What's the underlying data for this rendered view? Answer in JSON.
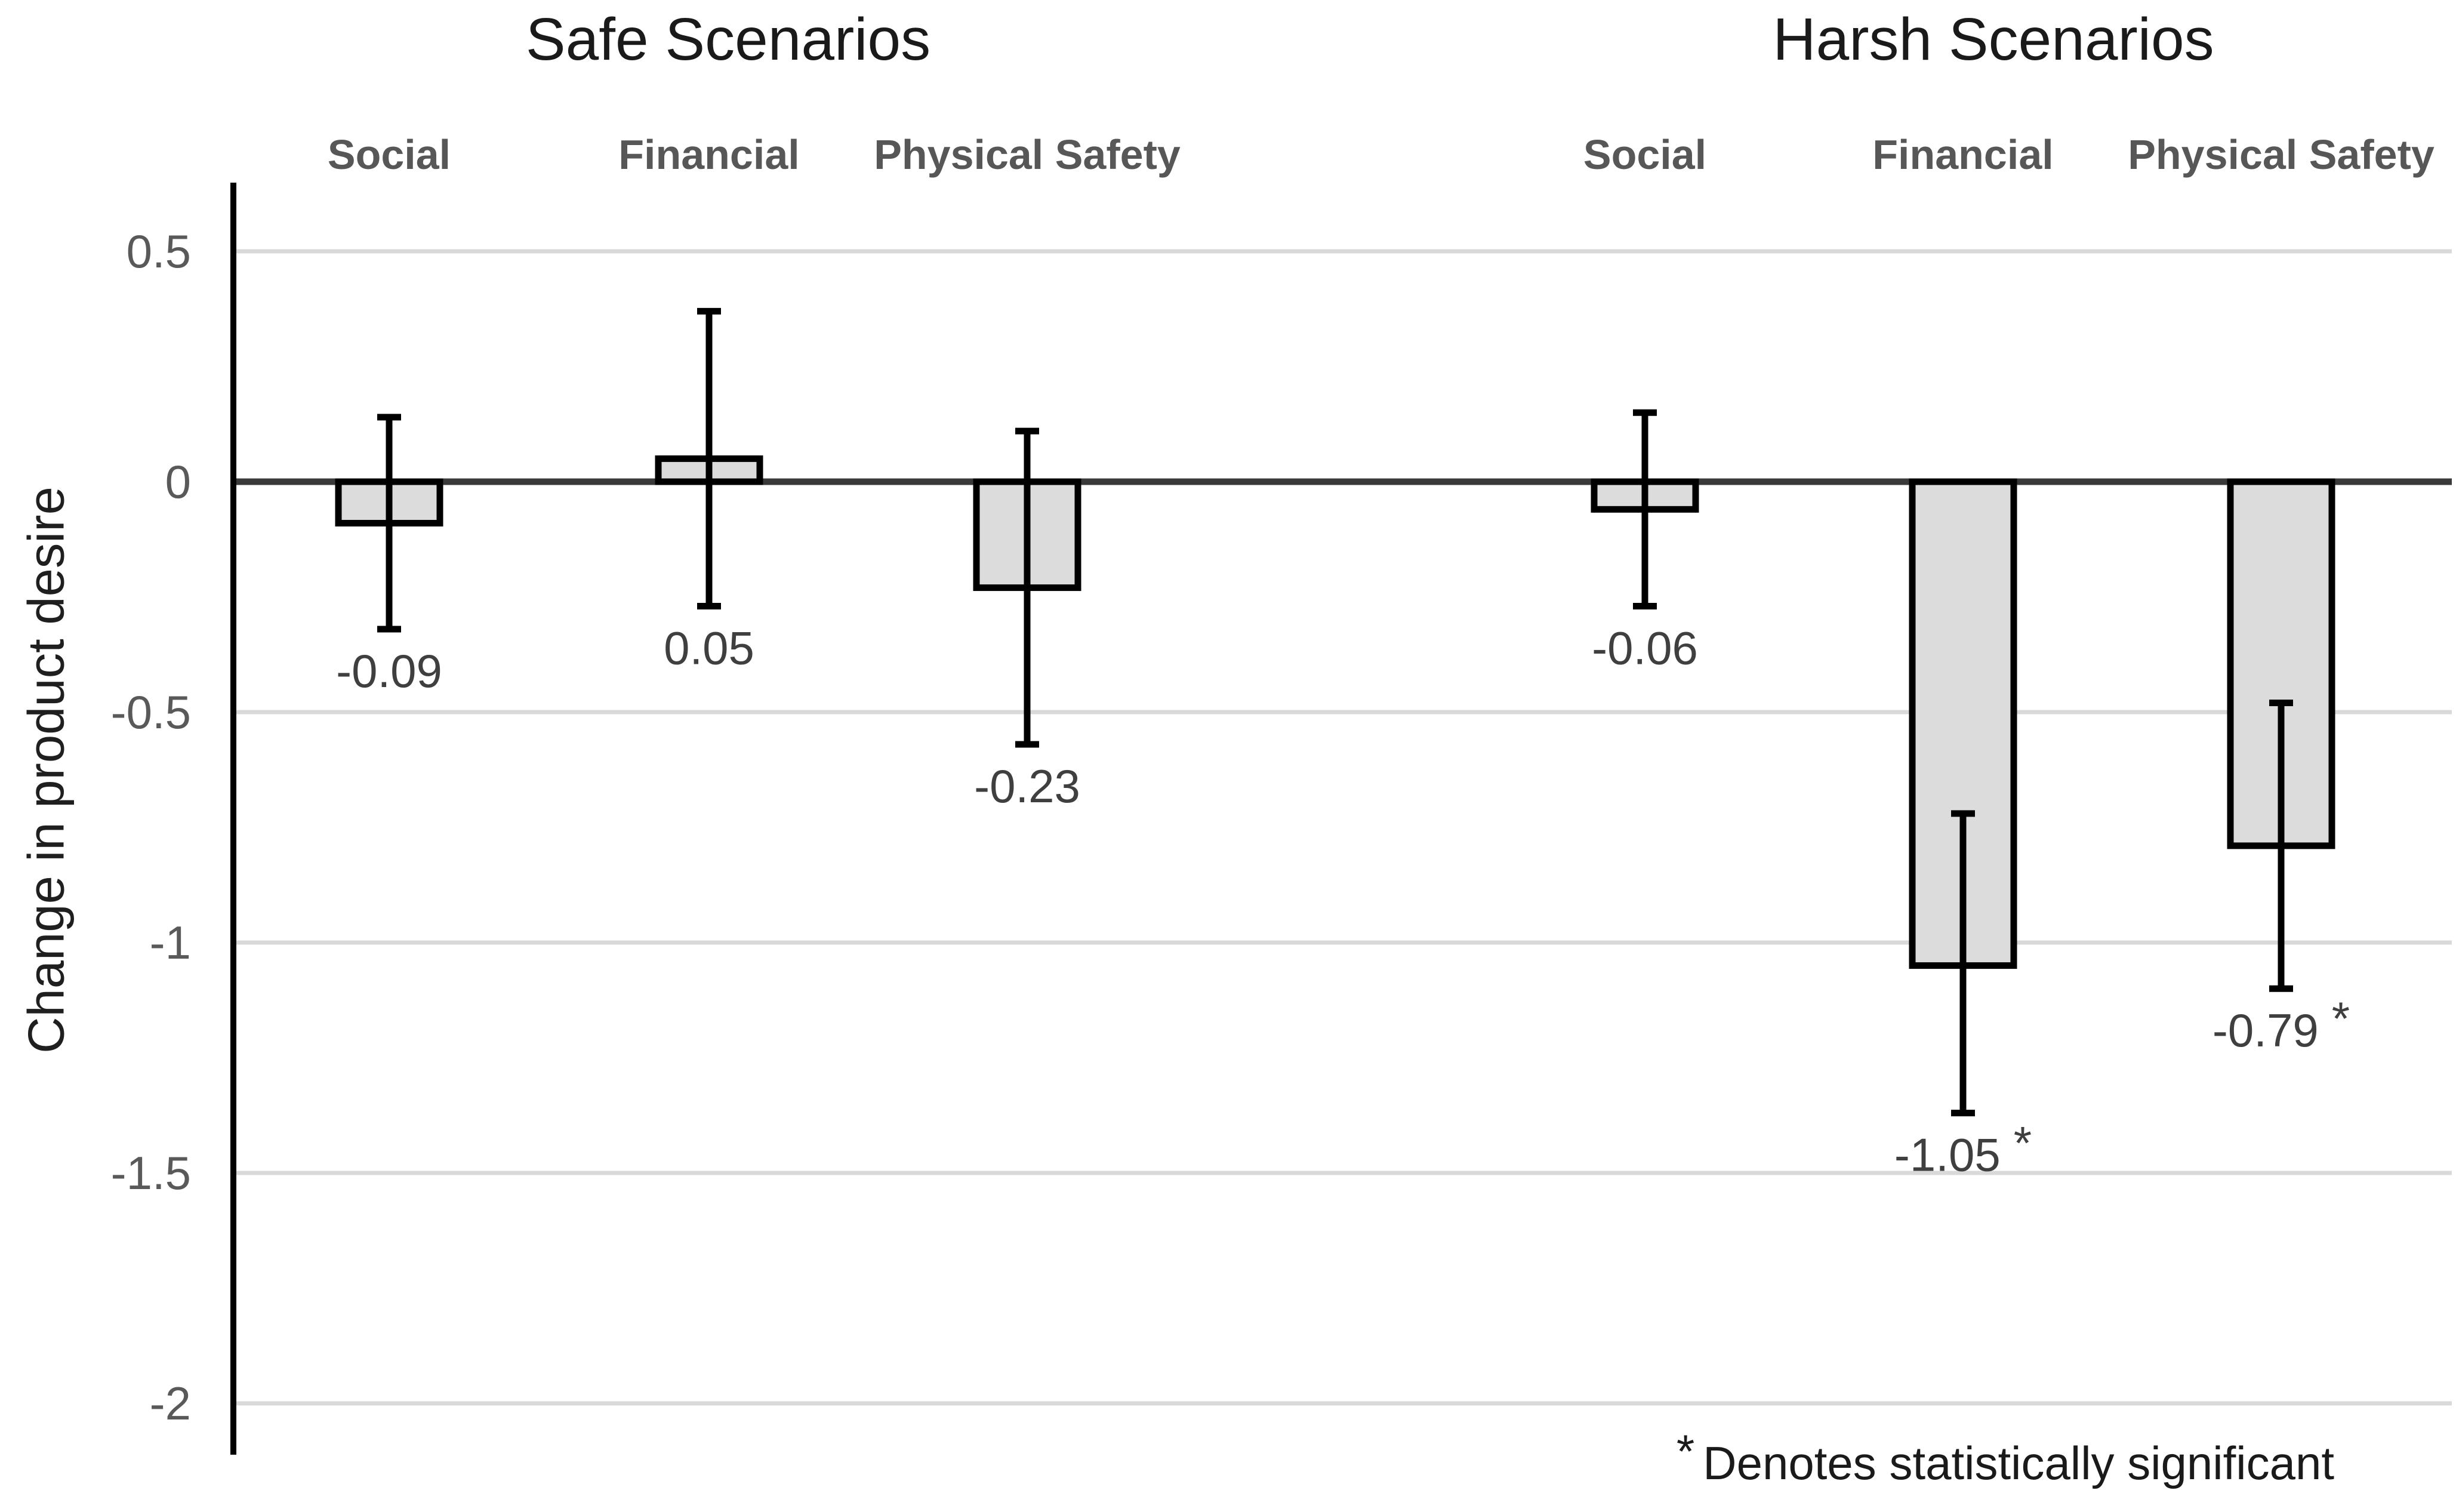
{
  "chart_data": {
    "type": "bar",
    "ylabel": "Change in product desire",
    "groups": [
      {
        "title": "Safe Scenarios",
        "categories": [
          "Social",
          "Financial",
          "Physical Safety"
        ]
      },
      {
        "title": "Harsh Scenarios",
        "categories": [
          "Social",
          "Financial",
          "Physical Safety"
        ]
      }
    ],
    "ytick_values": [
      0.5,
      0,
      -0.5,
      -1,
      -1.5,
      -2
    ],
    "ytick_labels": [
      "0.5",
      "0",
      "-0.5",
      "-1",
      "-1.5",
      "-2"
    ],
    "ylim": [
      -2.25,
      0.62
    ],
    "grid": "horizontal",
    "legend": "none",
    "points": [
      {
        "group": "Safe Scenarios",
        "category": "Social",
        "value": -0.09,
        "label": "-0.09",
        "ci_high": 0.14,
        "ci_low": -0.32,
        "significant": false
      },
      {
        "group": "Safe Scenarios",
        "category": "Financial",
        "value": 0.05,
        "label": "0.05",
        "ci_high": 0.37,
        "ci_low": -0.27,
        "significant": false
      },
      {
        "group": "Safe Scenarios",
        "category": "Physical Safety",
        "value": -0.23,
        "label": "-0.23",
        "ci_high": 0.11,
        "ci_low": -0.57,
        "significant": false
      },
      {
        "group": "Harsh Scenarios",
        "category": "Social",
        "value": -0.06,
        "label": "-0.06",
        "ci_high": 0.15,
        "ci_low": -0.27,
        "significant": false
      },
      {
        "group": "Harsh Scenarios",
        "category": "Financial",
        "value": -1.05,
        "label": "-1.05",
        "ci_high": -0.72,
        "ci_low": -1.37,
        "significant": true,
        "sig_marker": "*"
      },
      {
        "group": "Harsh Scenarios",
        "category": "Physical Safety",
        "value": -0.79,
        "label": "-0.79",
        "ci_high": -0.48,
        "ci_low": -1.1,
        "significant": true,
        "sig_marker": "*"
      }
    ],
    "footnote_marker": "*",
    "footnote_text": "Denotes statistically significant",
    "colors": {
      "bar_fill": "#dcdcdc",
      "bar_stroke": "#000000",
      "error_bar": "#000000",
      "gridline": "#d9d9d9",
      "zero_line": "#3a3a3a",
      "axis_line": "#000000",
      "title_text": "#1a1a1a",
      "header_text": "#575757",
      "tick_text": "#595959",
      "data_label_text": "#3f3f3f",
      "footnote_text_color": "#1a1a1a",
      "background": "#ffffff"
    }
  }
}
